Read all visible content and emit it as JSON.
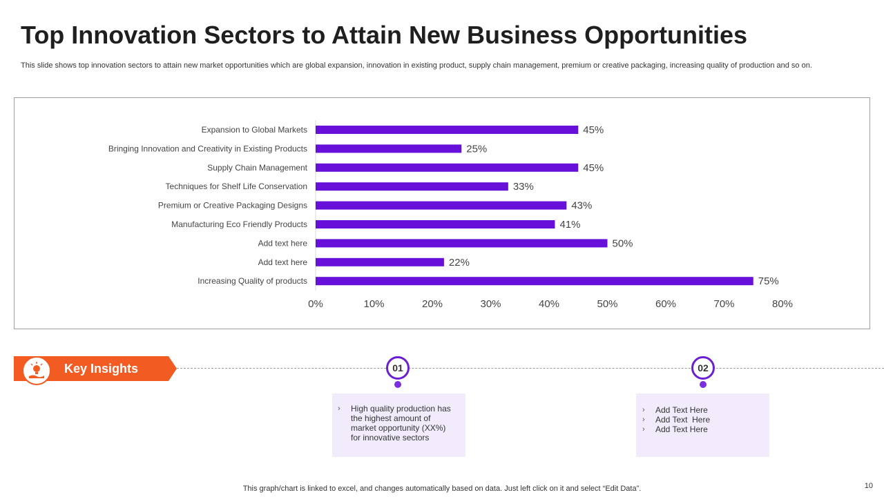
{
  "slide": {
    "title": "Top Innovation Sectors to Attain New Business Opportunities",
    "subtitle": "This slide shows top innovation sectors to attain new market opportunities which are global expansion, innovation in existing product, supply chain management, premium or creative packaging, increasing quality of production and so on.",
    "footer": "This graph/chart is linked to excel,  and changes automatically based on data. Just left click on it and select “Edit Data”.",
    "page_number": "10"
  },
  "chart_data": {
    "type": "bar",
    "orientation": "horizontal",
    "categories": [
      "Expansion to Global Markets",
      "Bringing Innovation and Creativity in Existing Products",
      "Supply Chain Management",
      "Techniques for Shelf Life Conservation",
      "Premium or Creative Packaging Designs",
      "Manufacturing Eco Friendly Products",
      "Add text here",
      "Add text here",
      "Increasing Quality of products"
    ],
    "values": [
      45,
      25,
      45,
      33,
      43,
      41,
      50,
      22,
      75
    ],
    "value_labels": [
      "45%",
      "25%",
      "45%",
      "33%",
      "43%",
      "41%",
      "50%",
      "22%",
      "75%"
    ],
    "xlim": [
      0,
      80
    ],
    "xticks": [
      "0%",
      "10%",
      "20%",
      "30%",
      "40%",
      "50%",
      "60%",
      "70%",
      "80%"
    ],
    "bar_color": "#6610d9",
    "grid": false,
    "title": "",
    "xlabel": "",
    "ylabel": ""
  },
  "insights": {
    "banner_label": "Key Insights",
    "banner_color": "#f25c22",
    "accent_color": "#6a1fd1",
    "items": [
      {
        "marker": "01",
        "bullets": [
          "High quality production has the highest amount of market opportunity (XX%) for innovative sectors"
        ]
      },
      {
        "marker": "02",
        "bullets": [
          "Add Text Here",
          "Add Text  Here",
          "Add Text Here"
        ]
      }
    ]
  },
  "icons": {
    "insights_icon": "lightbulb-hand-icon",
    "bullet_icon": "chevron-right-icon"
  }
}
